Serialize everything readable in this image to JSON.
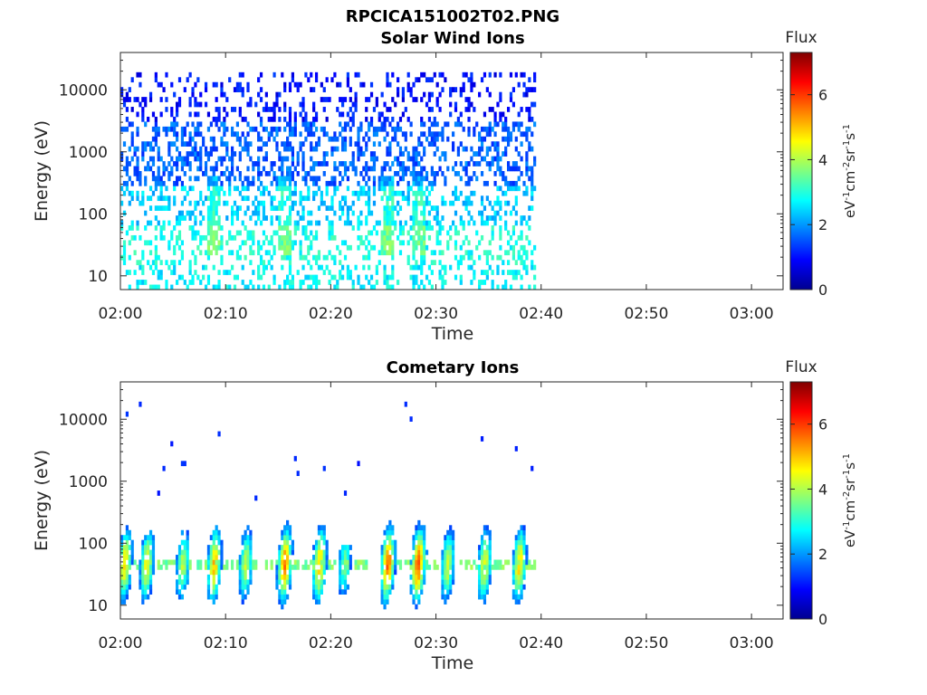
{
  "title": "RPCICA151002T02.PNG",
  "chart_data": [
    {
      "type": "heatmap",
      "title": "Solar Wind Ions",
      "xlabel": "Time",
      "ylabel": "Energy (eV)",
      "x_tick_labels": [
        "02:00",
        "02:10",
        "02:20",
        "02:30",
        "02:40",
        "02:50",
        "03:00"
      ],
      "x_range_minutes": [
        0,
        63
      ],
      "data_end_minute": 39.5,
      "y_tick_labels": [
        "10",
        "100",
        "1000",
        "10000"
      ],
      "y_range": [
        6,
        40000
      ],
      "y_scale": "log",
      "colorbar": {
        "title": "Flux",
        "unit": "eV-1cm-2sr-1s-1",
        "ticks": [
          "0",
          "2",
          "4",
          "6"
        ],
        "range": [
          0,
          7.3
        ]
      },
      "colormap": "jet",
      "approx_flux_by_energy": [
        {
          "energy": 8,
          "flux": 2.8
        },
        {
          "energy": 40,
          "flux": 3.0
        },
        {
          "energy": 100,
          "flux": 2.5
        },
        {
          "energy": 1000,
          "flux": 1.7
        },
        {
          "energy": 10000,
          "flux": 1.0
        }
      ]
    },
    {
      "type": "heatmap",
      "title": "Cometary Ions",
      "xlabel": "Time",
      "ylabel": "Energy (eV)",
      "x_tick_labels": [
        "02:00",
        "02:10",
        "02:20",
        "02:30",
        "02:40",
        "02:50",
        "03:00"
      ],
      "x_range_minutes": [
        0,
        63
      ],
      "data_end_minute": 39.5,
      "y_tick_labels": [
        "10",
        "100",
        "1000",
        "10000"
      ],
      "y_range": [
        6,
        40000
      ],
      "y_scale": "log",
      "colorbar": {
        "title": "Flux",
        "unit": "eV-1cm-2sr-1s-1",
        "ticks": [
          "0",
          "2",
          "4",
          "6"
        ],
        "range": [
          0,
          7.3
        ]
      },
      "colormap": "jet",
      "bursts": [
        {
          "minute": 0.3,
          "peak_flux": 4.8,
          "max_energy": 300
        },
        {
          "minute": 2.4,
          "peak_flux": 4.5,
          "max_energy": 150
        },
        {
          "minute": 5.8,
          "peak_flux": 4.0,
          "max_energy": 150
        },
        {
          "minute": 8.8,
          "peak_flux": 5.0,
          "max_energy": 450
        },
        {
          "minute": 11.8,
          "peak_flux": 4.2,
          "max_energy": 200
        },
        {
          "minute": 15.5,
          "peak_flux": 5.5,
          "max_energy": 650
        },
        {
          "minute": 18.8,
          "peak_flux": 5.0,
          "max_energy": 200
        },
        {
          "minute": 21.2,
          "peak_flux": 3.5,
          "max_energy": 100
        },
        {
          "minute": 25.3,
          "peak_flux": 5.6,
          "max_energy": 500
        },
        {
          "minute": 28.2,
          "peak_flux": 5.8,
          "max_energy": 400
        },
        {
          "minute": 31.0,
          "peak_flux": 4.2,
          "max_energy": 300
        },
        {
          "minute": 34.5,
          "peak_flux": 4.5,
          "max_energy": 400
        },
        {
          "minute": 37.8,
          "peak_flux": 4.8,
          "max_energy": 250
        }
      ]
    }
  ]
}
